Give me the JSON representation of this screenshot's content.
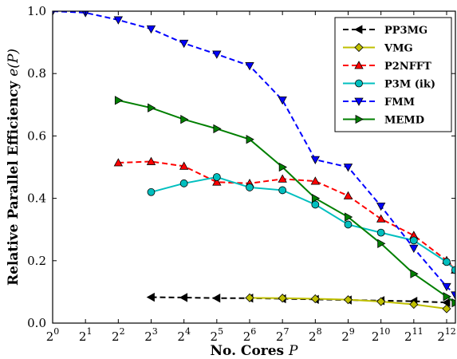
{
  "chart_data": {
    "type": "line",
    "xlabel": "No. Cores P",
    "ylabel": "Relative Parallel Efficiency e(P)",
    "x_scale": "log2",
    "xlim": [
      1,
      4096
    ],
    "ylim": [
      0.0,
      1.0
    ],
    "x_ticks": [
      1,
      2,
      4,
      8,
      16,
      32,
      64,
      128,
      256,
      512,
      1024,
      2048,
      4096
    ],
    "x_tick_labels": [
      {
        "base": "2",
        "exp": "0"
      },
      {
        "base": "2",
        "exp": "1"
      },
      {
        "base": "2",
        "exp": "2"
      },
      {
        "base": "2",
        "exp": "3"
      },
      {
        "base": "2",
        "exp": "4"
      },
      {
        "base": "2",
        "exp": "5"
      },
      {
        "base": "2",
        "exp": "6"
      },
      {
        "base": "2",
        "exp": "7"
      },
      {
        "base": "2",
        "exp": "8"
      },
      {
        "base": "2",
        "exp": "9"
      },
      {
        "base": "2",
        "exp": "10"
      },
      {
        "base": "2",
        "exp": "11"
      },
      {
        "base": "2",
        "exp": "12"
      }
    ],
    "y_ticks": [
      0.0,
      0.2,
      0.4,
      0.6,
      0.8,
      1.0
    ],
    "y_tick_labels": [
      "0.0",
      "0.2",
      "0.4",
      "0.6",
      "0.8",
      "1.0"
    ],
    "grid": false,
    "legend_position": "top-right",
    "series": [
      {
        "name": "PP3MG",
        "color": "#000000",
        "linestyle": "dashed",
        "marker": "triangle-left",
        "points": [
          [
            8,
            0.083
          ],
          [
            16,
            0.082
          ],
          [
            32,
            0.08
          ],
          [
            64,
            0.08
          ],
          [
            128,
            0.078
          ],
          [
            256,
            0.076
          ],
          [
            512,
            0.074
          ],
          [
            1024,
            0.072
          ],
          [
            2048,
            0.07
          ],
          [
            4096,
            0.066
          ]
        ]
      },
      {
        "name": "VMG",
        "color": "#bfbf00",
        "linestyle": "solid",
        "marker": "diamond",
        "points": [
          [
            64,
            0.081
          ],
          [
            128,
            0.08
          ],
          [
            256,
            0.078
          ],
          [
            512,
            0.075
          ],
          [
            1024,
            0.069
          ],
          [
            2048,
            0.06
          ],
          [
            4096,
            0.046
          ]
        ]
      },
      {
        "name": "P2NFFT",
        "color": "#ff0000",
        "linestyle": "dashed",
        "marker": "triangle-up",
        "points": [
          [
            4,
            0.514
          ],
          [
            8,
            0.518
          ],
          [
            16,
            0.503
          ],
          [
            32,
            0.452
          ],
          [
            64,
            0.448
          ],
          [
            128,
            0.462
          ],
          [
            256,
            0.455
          ],
          [
            512,
            0.408
          ],
          [
            1024,
            0.334
          ],
          [
            2048,
            0.281
          ],
          [
            4096,
            0.201
          ],
          [
            4915,
            0.17
          ]
        ]
      },
      {
        "name": "P3M (ik)",
        "color": "#00bfbf",
        "linestyle": "solid",
        "marker": "circle",
        "points": [
          [
            8,
            0.42
          ],
          [
            16,
            0.448
          ],
          [
            32,
            0.468
          ],
          [
            64,
            0.435
          ],
          [
            128,
            0.426
          ],
          [
            256,
            0.38
          ],
          [
            512,
            0.316
          ],
          [
            1024,
            0.29
          ],
          [
            2048,
            0.265
          ],
          [
            4096,
            0.196
          ],
          [
            4915,
            0.17
          ]
        ]
      },
      {
        "name": "FMM",
        "color": "#0000ff",
        "linestyle": "dashed",
        "marker": "triangle-down",
        "points": [
          [
            1,
            1.0
          ],
          [
            2,
            0.995
          ],
          [
            4,
            0.972
          ],
          [
            8,
            0.943
          ],
          [
            16,
            0.897
          ],
          [
            32,
            0.862
          ],
          [
            64,
            0.825
          ],
          [
            128,
            0.715
          ],
          [
            256,
            0.524
          ],
          [
            512,
            0.5
          ],
          [
            1024,
            0.375
          ],
          [
            2048,
            0.24
          ],
          [
            4096,
            0.117
          ],
          [
            4915,
            0.09
          ]
        ]
      },
      {
        "name": "MEMD",
        "color": "#007f00",
        "linestyle": "solid",
        "marker": "triangle-right",
        "points": [
          [
            4,
            0.714
          ],
          [
            8,
            0.69
          ],
          [
            16,
            0.653
          ],
          [
            32,
            0.623
          ],
          [
            64,
            0.589
          ],
          [
            128,
            0.5
          ],
          [
            256,
            0.4
          ],
          [
            512,
            0.34
          ],
          [
            1024,
            0.255
          ],
          [
            2048,
            0.158
          ],
          [
            4096,
            0.085
          ],
          [
            4915,
            0.065
          ]
        ]
      }
    ]
  }
}
